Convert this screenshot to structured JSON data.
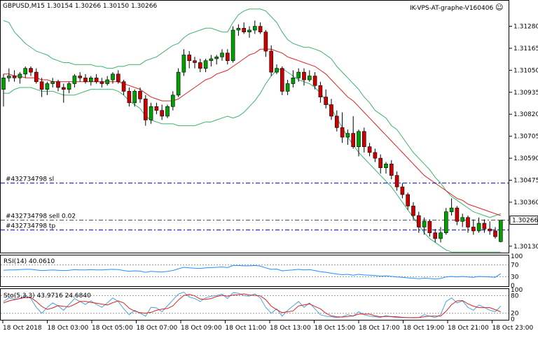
{
  "header": {
    "symbol_line": "GBPUSD,M15  1.30154 1.30266 1.30150 1.30266",
    "indicator_name": "IK-VPS-AT-graphe-V160406",
    "smiley": "☺"
  },
  "chart_data": [
    {
      "type": "line",
      "panel": "main",
      "ylim": [
        1.301,
        1.3141
      ],
      "y_ticks": [
        "1.31280",
        "1.31165",
        "1.31050",
        "1.30935",
        "1.30820",
        "1.30705",
        "1.30590",
        "1.30475",
        "1.30360",
        "1.30130"
      ],
      "current_price_label": "1.30266",
      "order_lines": [
        {
          "label": "#432734798 sl",
          "price": 1.3046,
          "color": "#0000cc"
        },
        {
          "label": "#432734798 sell 0.02",
          "price": 1.30266,
          "color": "#444444"
        },
        {
          "label": "#432734798 tp",
          "price": 1.30215,
          "color": "#0000cc"
        }
      ],
      "candles": [
        [
          1.3095,
          1.3103,
          1.3086,
          1.3101
        ],
        [
          1.3101,
          1.3106,
          1.3099,
          1.3102
        ],
        [
          1.3102,
          1.3105,
          1.3099,
          1.3101
        ],
        [
          1.3101,
          1.3104,
          1.3098,
          1.3103
        ],
        [
          1.3103,
          1.3107,
          1.3101,
          1.3106
        ],
        [
          1.3106,
          1.3107,
          1.3102,
          1.3104
        ],
        [
          1.3104,
          1.3106,
          1.3098,
          1.3099
        ],
        [
          1.3099,
          1.3101,
          1.3091,
          1.3095
        ],
        [
          1.3095,
          1.3099,
          1.3092,
          1.3098
        ],
        [
          1.3098,
          1.3101,
          1.3096,
          1.3099
        ],
        [
          1.3099,
          1.31,
          1.3094,
          1.3096
        ],
        [
          1.3096,
          1.3098,
          1.3088,
          1.3095
        ],
        [
          1.3095,
          1.3099,
          1.3093,
          1.3098
        ],
        [
          1.3098,
          1.3103,
          1.3096,
          1.3102
        ],
        [
          1.3102,
          1.3104,
          1.3099,
          1.3101
        ],
        [
          1.3101,
          1.3103,
          1.3098,
          1.3099
        ],
        [
          1.3099,
          1.3102,
          1.3097,
          1.3101
        ],
        [
          1.3101,
          1.3103,
          1.3098,
          1.3099
        ],
        [
          1.3099,
          1.3101,
          1.3096,
          1.3098
        ],
        [
          1.3098,
          1.3102,
          1.3097,
          1.31
        ],
        [
          1.31,
          1.3104,
          1.3098,
          1.3103
        ],
        [
          1.3103,
          1.3105,
          1.3098,
          1.3099
        ],
        [
          1.3099,
          1.31,
          1.3092,
          1.3094
        ],
        [
          1.3094,
          1.3096,
          1.3086,
          1.3088
        ],
        [
          1.3088,
          1.3095,
          1.3086,
          1.3094
        ],
        [
          1.3094,
          1.3096,
          1.3088,
          1.309
        ],
        [
          1.309,
          1.3092,
          1.3076,
          1.3079
        ],
        [
          1.3079,
          1.3088,
          1.3077,
          1.3086
        ],
        [
          1.3086,
          1.3088,
          1.3082,
          1.3084
        ],
        [
          1.3084,
          1.3087,
          1.3079,
          1.3081
        ],
        [
          1.3081,
          1.3087,
          1.308,
          1.3086
        ],
        [
          1.3086,
          1.3094,
          1.3084,
          1.3092
        ],
        [
          1.3092,
          1.3106,
          1.3091,
          1.3104
        ],
        [
          1.3104,
          1.3116,
          1.3102,
          1.3113
        ],
        [
          1.3113,
          1.3115,
          1.3106,
          1.311
        ],
        [
          1.311,
          1.3112,
          1.3106,
          1.3109
        ],
        [
          1.3109,
          1.3111,
          1.3104,
          1.3106
        ],
        [
          1.3106,
          1.3111,
          1.3104,
          1.311
        ],
        [
          1.311,
          1.3113,
          1.3107,
          1.3111
        ],
        [
          1.3111,
          1.3113,
          1.3108,
          1.3112
        ],
        [
          1.3112,
          1.3116,
          1.311,
          1.3114
        ],
        [
          1.3114,
          1.3116,
          1.3108,
          1.311
        ],
        [
          1.311,
          1.3128,
          1.3109,
          1.3126
        ],
        [
          1.3126,
          1.3129,
          1.3123,
          1.3127
        ],
        [
          1.3127,
          1.313,
          1.3124,
          1.3125
        ],
        [
          1.3125,
          1.3128,
          1.3122,
          1.3126
        ],
        [
          1.3126,
          1.3131,
          1.3124,
          1.3128
        ],
        [
          1.3128,
          1.313,
          1.3124,
          1.3125
        ],
        [
          1.3125,
          1.3126,
          1.3112,
          1.3115
        ],
        [
          1.3115,
          1.3118,
          1.3102,
          1.3104
        ],
        [
          1.3104,
          1.3108,
          1.3103,
          1.3106
        ],
        [
          1.3106,
          1.3107,
          1.3092,
          1.3094
        ],
        [
          1.3094,
          1.31,
          1.3092,
          1.3098
        ],
        [
          1.3098,
          1.3105,
          1.3096,
          1.3101
        ],
        [
          1.3101,
          1.3106,
          1.3099,
          1.3104
        ],
        [
          1.3104,
          1.3106,
          1.3097,
          1.31
        ],
        [
          1.31,
          1.3105,
          1.3099,
          1.3102
        ],
        [
          1.3102,
          1.3104,
          1.3095,
          1.3097
        ],
        [
          1.3097,
          1.3099,
          1.3088,
          1.3091
        ],
        [
          1.3091,
          1.3095,
          1.3085,
          1.3087
        ],
        [
          1.3087,
          1.309,
          1.3079,
          1.3081
        ],
        [
          1.3081,
          1.3084,
          1.3073,
          1.3075
        ],
        [
          1.3075,
          1.3083,
          1.3067,
          1.307
        ],
        [
          1.307,
          1.3074,
          1.3066,
          1.3072
        ],
        [
          1.3072,
          1.3081,
          1.3064,
          1.3065
        ],
        [
          1.3065,
          1.3074,
          1.306,
          1.3073
        ],
        [
          1.3073,
          1.3075,
          1.3062,
          1.3065
        ],
        [
          1.3065,
          1.3067,
          1.306,
          1.3062
        ],
        [
          1.3062,
          1.3064,
          1.3057,
          1.3059
        ],
        [
          1.3059,
          1.3061,
          1.3051,
          1.3054
        ],
        [
          1.3054,
          1.3057,
          1.3051,
          1.3056
        ],
        [
          1.3056,
          1.3058,
          1.3048,
          1.305
        ],
        [
          1.305,
          1.3052,
          1.3042,
          1.3044
        ],
        [
          1.3044,
          1.3046,
          1.3038,
          1.304
        ],
        [
          1.304,
          1.3041,
          1.3032,
          1.3034
        ],
        [
          1.3034,
          1.3036,
          1.3027,
          1.3029
        ],
        [
          1.3029,
          1.3031,
          1.302,
          1.3023
        ],
        [
          1.3023,
          1.3028,
          1.3019,
          1.3026
        ],
        [
          1.3026,
          1.3027,
          1.3018,
          1.302
        ],
        [
          1.302,
          1.3022,
          1.3015,
          1.3017
        ],
        [
          1.3017,
          1.3023,
          1.3015,
          1.302
        ],
        [
          1.302,
          1.3033,
          1.3019,
          1.3031
        ],
        [
          1.3031,
          1.3038,
          1.3029,
          1.3033
        ],
        [
          1.3033,
          1.3034,
          1.3024,
          1.3026
        ],
        [
          1.3026,
          1.303,
          1.3023,
          1.3028
        ],
        [
          1.3028,
          1.3029,
          1.302,
          1.3023
        ],
        [
          1.3023,
          1.3027,
          1.3019,
          1.3021
        ],
        [
          1.3021,
          1.3028,
          1.302,
          1.3025
        ],
        [
          1.3025,
          1.3027,
          1.302,
          1.3022
        ],
        [
          1.3022,
          1.3026,
          1.3019,
          1.3021
        ],
        [
          1.3021,
          1.3023,
          1.3017,
          1.3018
        ],
        [
          1.30154,
          1.30266,
          1.3015,
          1.30266
        ]
      ],
      "bollinger_upper": [
        1.3131,
        1.313,
        1.3125,
        1.3122,
        1.3119,
        1.3117,
        1.3115,
        1.3114,
        1.3113,
        1.3111,
        1.311,
        1.3109,
        1.3109,
        1.3108,
        1.3108,
        1.3108,
        1.3108,
        1.3107,
        1.3107,
        1.3106,
        1.3106,
        1.3107,
        1.3107,
        1.3108,
        1.3108,
        1.3108,
        1.311,
        1.3111,
        1.3112,
        1.3114,
        1.3116,
        1.3118,
        1.3119,
        1.3122,
        1.3124,
        1.3125,
        1.3126,
        1.3127,
        1.3127,
        1.3126,
        1.3125,
        1.3125,
        1.313,
        1.3134,
        1.3136,
        1.3137,
        1.3137,
        1.3137,
        1.3136,
        1.3133,
        1.313,
        1.3125,
        1.3121,
        1.3119,
        1.3118,
        1.3117,
        1.3117,
        1.3116,
        1.3115,
        1.3113,
        1.3111,
        1.3107,
        1.3104,
        1.3101,
        1.3098,
        1.3095,
        1.3091,
        1.3088,
        1.3084,
        1.3082,
        1.308,
        1.3076,
        1.3074,
        1.307,
        1.3066,
        1.3062,
        1.3059,
        1.3056,
        1.3053,
        1.3049,
        1.3046,
        1.3042,
        1.3039,
        1.3037,
        1.3035,
        1.3033,
        1.3031,
        1.303,
        1.3029,
        1.3028,
        1.3029,
        1.303
      ],
      "bollinger_lower": [
        1.3093,
        1.3093,
        1.3095,
        1.3096,
        1.3096,
        1.3096,
        1.3095,
        1.3094,
        1.3094,
        1.3094,
        1.3093,
        1.3092,
        1.3092,
        1.3092,
        1.3093,
        1.3094,
        1.3095,
        1.3095,
        1.3095,
        1.3095,
        1.3095,
        1.3094,
        1.3092,
        1.3089,
        1.3087,
        1.3085,
        1.3081,
        1.3079,
        1.3078,
        1.3077,
        1.3077,
        1.3077,
        1.3076,
        1.3076,
        1.3076,
        1.3076,
        1.3077,
        1.3078,
        1.3078,
        1.3079,
        1.308,
        1.3081,
        1.308,
        1.3081,
        1.3083,
        1.3086,
        1.3089,
        1.3093,
        1.3098,
        1.3102,
        1.3105,
        1.3106,
        1.3104,
        1.3102,
        1.31,
        1.3099,
        1.3098,
        1.3096,
        1.3093,
        1.3089,
        1.3085,
        1.308,
        1.3075,
        1.307,
        1.3066,
        1.3062,
        1.3059,
        1.3056,
        1.3053,
        1.305,
        1.3047,
        1.3044,
        1.304,
        1.3036,
        1.3032,
        1.3028,
        1.3024,
        1.302,
        1.3017,
        1.3015,
        1.3013,
        1.3011,
        1.301,
        1.301,
        1.301,
        1.301,
        1.301,
        1.301,
        1.301,
        1.301,
        1.301,
        1.301
      ],
      "moving_average": [
        1.3103,
        1.3103,
        1.3102,
        1.3102,
        1.3101,
        1.3101,
        1.3101,
        1.31,
        1.31,
        1.3099,
        1.3099,
        1.3099,
        1.3099,
        1.3099,
        1.3099,
        1.3099,
        1.3099,
        1.3099,
        1.3099,
        1.3099,
        1.3099,
        1.3099,
        1.3098,
        1.3097,
        1.3096,
        1.3095,
        1.3093,
        1.3091,
        1.309,
        1.3089,
        1.3089,
        1.3089,
        1.309,
        1.3092,
        1.3094,
        1.3096,
        1.3098,
        1.31,
        1.3101,
        1.3103,
        1.3104,
        1.3105,
        1.3107,
        1.3109,
        1.3111,
        1.3113,
        1.3114,
        1.3116,
        1.3116,
        1.3116,
        1.3115,
        1.3114,
        1.3112,
        1.3111,
        1.311,
        1.3109,
        1.3108,
        1.3107,
        1.3105,
        1.3103,
        1.31,
        1.3097,
        1.3094,
        1.3091,
        1.3089,
        1.3086,
        1.3083,
        1.308,
        1.3077,
        1.3074,
        1.3071,
        1.3068,
        1.3065,
        1.3062,
        1.3059,
        1.3056,
        1.3053,
        1.305,
        1.3048,
        1.3046,
        1.3044,
        1.3042,
        1.304,
        1.3038,
        1.3037,
        1.3035,
        1.3034,
        1.3033,
        1.3032,
        1.3031,
        1.303,
        1.3029
      ]
    },
    {
      "type": "line",
      "panel": "rsi",
      "label": "RSI(14) 40.0610",
      "ylim": [
        0,
        100
      ],
      "levels": [
        70,
        30
      ],
      "y_ticks": [
        "100",
        "70",
        "30",
        "0"
      ],
      "values": [
        52,
        53,
        53,
        54,
        55,
        55,
        53,
        51,
        52,
        53,
        52,
        51,
        52,
        54,
        53,
        53,
        54,
        53,
        53,
        54,
        55,
        54,
        51,
        48,
        50,
        49,
        45,
        48,
        47,
        46,
        48,
        51,
        57,
        62,
        60,
        59,
        58,
        60,
        61,
        62,
        63,
        61,
        68,
        68,
        67,
        67,
        68,
        66,
        60,
        55,
        56,
        50,
        52,
        53,
        55,
        53,
        54,
        51,
        47,
        45,
        42,
        39,
        37,
        38,
        35,
        38,
        36,
        35,
        34,
        32,
        33,
        31,
        29,
        28,
        26,
        25,
        23,
        25,
        24,
        22,
        24,
        29,
        31,
        29,
        31,
        29,
        28,
        31,
        30,
        29,
        28,
        40
      ]
    },
    {
      "type": "line",
      "panel": "stochastic",
      "label": "Sto(5,3,3) 43.9716 24.6840",
      "ylim": [
        0,
        100
      ],
      "levels": [
        80,
        20
      ],
      "y_ticks": [
        "100",
        "80",
        "20",
        "0"
      ],
      "series": [
        {
          "name": "main",
          "values": [
            60,
            72,
            68,
            70,
            80,
            70,
            40,
            20,
            40,
            55,
            45,
            30,
            50,
            70,
            60,
            50,
            62,
            50,
            40,
            55,
            72,
            60,
            35,
            15,
            30,
            20,
            10,
            40,
            38,
            25,
            45,
            65,
            85,
            92,
            75,
            70,
            60,
            72,
            78,
            80,
            85,
            70,
            90,
            88,
            80,
            78,
            86,
            72,
            40,
            20,
            35,
            10,
            30,
            45,
            60,
            40,
            55,
            35,
            15,
            10,
            8,
            5,
            8,
            15,
            10,
            25,
            15,
            10,
            8,
            6,
            12,
            8,
            5,
            5,
            5,
            4,
            5,
            15,
            10,
            5,
            15,
            60,
            72,
            55,
            62,
            40,
            30,
            48,
            40,
            30,
            25,
            44
          ]
        },
        {
          "name": "signal",
          "values": [
            55,
            62,
            66,
            70,
            73,
            73,
            60,
            43,
            33,
            38,
            46,
            43,
            42,
            50,
            60,
            60,
            57,
            54,
            51,
            48,
            56,
            62,
            55,
            37,
            27,
            22,
            20,
            23,
            30,
            34,
            36,
            45,
            65,
            80,
            84,
            79,
            68,
            67,
            70,
            77,
            81,
            78,
            82,
            83,
            86,
            82,
            81,
            79,
            66,
            44,
            32,
            22,
            25,
            28,
            45,
            48,
            52,
            43,
            35,
            20,
            11,
            8,
            7,
            9,
            11,
            17,
            17,
            17,
            11,
            8,
            9,
            9,
            8,
            6,
            5,
            5,
            5,
            8,
            10,
            10,
            10,
            27,
            49,
            62,
            63,
            52,
            44,
            39,
            39,
            39,
            32,
            25
          ]
        }
      ]
    }
  ],
  "time_axis": {
    "labels": [
      "18 Oct 2018",
      "18 Oct 03:00",
      "18 Oct 05:00",
      "18 Oct 07:00",
      "18 Oct 09:00",
      "18 Oct 11:00",
      "18 Oct 13:00",
      "18 Oct 15:00",
      "18 Oct 17:00",
      "18 Oct 19:00",
      "18 Oct 21:00",
      "18 Oct 23:00"
    ]
  },
  "colors": {
    "bull_body": "#00a000",
    "bear_body": "#cc0000",
    "candle_wick": "#000000",
    "bollinger": "#3cb371",
    "moving_average": "#dd2222",
    "rsi_line": "#1e90ff",
    "sto_main": "#4aa3df",
    "sto_signal": "#dd2222",
    "price_tag_bg": "#ffffff"
  }
}
